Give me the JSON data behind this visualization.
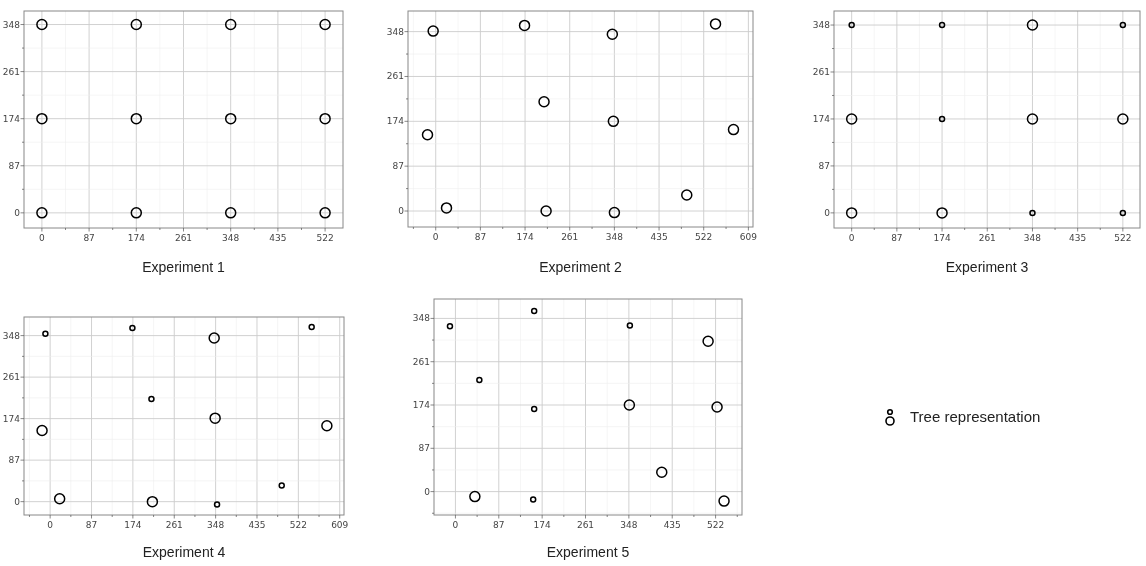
{
  "chart_data": [
    {
      "type": "bubble",
      "title": "Experiment 1",
      "grid": true,
      "xlim": [
        -33,
        555
      ],
      "ylim": [
        -28,
        373
      ],
      "xticks": [
        0,
        {
          "value": 43.5,
          "label": null
        },
        87,
        {
          "value": 130.5,
          "label": null
        },
        174,
        {
          "value": 217.5,
          "label": null
        },
        261,
        {
          "value": 304.5,
          "label": null
        },
        348,
        {
          "value": 391.5,
          "label": null
        },
        435,
        {
          "value": 478.5,
          "label": null
        },
        522
      ],
      "yticks": [
        0,
        {
          "value": 43.5,
          "label": null
        },
        87,
        {
          "value": 130.5,
          "label": null
        },
        174,
        {
          "value": 217.5,
          "label": null
        },
        261,
        {
          "value": 304.5,
          "label": null
        },
        348
      ],
      "series": [
        {
          "color": "#000000",
          "x": [
            0,
            174,
            348,
            522,
            0,
            174,
            348,
            522,
            0,
            174,
            348,
            522
          ],
          "values": [
            348,
            348,
            348,
            348,
            174,
            174,
            174,
            174,
            0,
            0,
            0,
            0
          ],
          "sizes": [
            1,
            1,
            1,
            1,
            1,
            1,
            1,
            1,
            1,
            1,
            1,
            1
          ]
        }
      ]
    },
    {
      "type": "bubble",
      "title": "Experiment 2",
      "grid": true,
      "xlim": [
        -54,
        618
      ],
      "ylim": [
        -31,
        388
      ],
      "xticks": [
        {
          "value": -43.5,
          "label": null
        },
        0,
        {
          "value": 43.5,
          "label": null
        },
        87,
        {
          "value": 130.5,
          "label": null
        },
        174,
        {
          "value": 217.5,
          "label": null
        },
        261,
        {
          "value": 304.5,
          "label": null
        },
        348,
        {
          "value": 391.5,
          "label": null
        },
        435,
        {
          "value": 478.5,
          "label": null
        },
        522,
        {
          "value": 565.5,
          "label": null
        },
        609
      ],
      "yticks": [
        0,
        {
          "value": 43.5,
          "label": null
        },
        87,
        {
          "value": 130.5,
          "label": null
        },
        174,
        {
          "value": 217.5,
          "label": null
        },
        261,
        {
          "value": 304.5,
          "label": null
        },
        348
      ],
      "series": [
        {
          "color": "#000000",
          "x": [
            -5,
            173,
            344,
            545,
            211,
            346,
            -16,
            580,
            21,
            215,
            348,
            489
          ],
          "values": [
            349,
            360,
            343,
            363,
            212,
            174,
            148,
            158,
            6,
            0,
            -3,
            31
          ],
          "sizes": [
            1,
            1,
            1,
            1,
            1,
            1,
            1,
            1,
            1,
            1,
            1,
            1
          ]
        }
      ]
    },
    {
      "type": "bubble",
      "title": "Experiment 3",
      "grid": true,
      "xlim": [
        -34,
        555
      ],
      "ylim": [
        -28,
        374
      ],
      "xticks": [
        0,
        {
          "value": 43.5,
          "label": null
        },
        87,
        {
          "value": 130.5,
          "label": null
        },
        174,
        {
          "value": 217.5,
          "label": null
        },
        261,
        {
          "value": 304.5,
          "label": null
        },
        348,
        {
          "value": 391.5,
          "label": null
        },
        435,
        {
          "value": 478.5,
          "label": null
        },
        522
      ],
      "yticks": [
        0,
        {
          "value": 43.5,
          "label": null
        },
        87,
        {
          "value": 130.5,
          "label": null
        },
        174,
        {
          "value": 217.5,
          "label": null
        },
        261,
        {
          "value": 304.5,
          "label": null
        },
        348
      ],
      "series": [
        {
          "color": "#000000",
          "x": [
            0,
            174,
            348,
            522,
            0,
            174,
            348,
            522,
            0,
            174,
            348,
            522
          ],
          "values": [
            348,
            348,
            348,
            348,
            174,
            174,
            174,
            174,
            0,
            0,
            0,
            0
          ],
          "sizes": [
            0.25,
            0.25,
            1,
            0.25,
            1,
            0.25,
            1,
            1,
            1,
            1,
            0.25,
            0.25
          ]
        }
      ]
    },
    {
      "type": "bubble",
      "title": "Experiment 4",
      "grid": true,
      "xlim": [
        -55,
        618
      ],
      "ylim": [
        -28,
        387
      ],
      "xticks": [
        {
          "value": -43.5,
          "label": null
        },
        0,
        {
          "value": 43.5,
          "label": null
        },
        87,
        {
          "value": 130.5,
          "label": null
        },
        174,
        {
          "value": 217.5,
          "label": null
        },
        261,
        {
          "value": 304.5,
          "label": null
        },
        348,
        {
          "value": 391.5,
          "label": null
        },
        435,
        {
          "value": 478.5,
          "label": null
        },
        522,
        {
          "value": 565.5,
          "label": null
        },
        609
      ],
      "yticks": [
        0,
        {
          "value": 43.5,
          "label": null
        },
        87,
        {
          "value": 130.5,
          "label": null
        },
        174,
        {
          "value": 217.5,
          "label": null
        },
        261,
        {
          "value": 304.5,
          "label": null
        },
        348
      ],
      "series": [
        {
          "color": "#000000",
          "x": [
            -10,
            173,
            345,
            550,
            213,
            347,
            -17,
            582,
            20,
            215,
            351,
            487
          ],
          "values": [
            352,
            364,
            343,
            366,
            215,
            175,
            149,
            159,
            6,
            0,
            -6,
            34
          ],
          "sizes": [
            0.25,
            0.25,
            1,
            0.25,
            0.25,
            1,
            1,
            1,
            1,
            1,
            0.25,
            0.25
          ]
        }
      ]
    },
    {
      "type": "bubble",
      "title": "Experiment 5",
      "grid": true,
      "xlim": [
        -43,
        575
      ],
      "ylim": [
        -47,
        387
      ],
      "xticks": [
        0,
        {
          "value": 43.5,
          "label": null
        },
        87,
        {
          "value": 130.5,
          "label": null
        },
        174,
        {
          "value": 217.5,
          "label": null
        },
        261,
        {
          "value": 304.5,
          "label": null
        },
        348,
        {
          "value": 391.5,
          "label": null
        },
        435,
        {
          "value": 478.5,
          "label": null
        },
        522,
        {
          "value": 565.5,
          "label": null
        }
      ],
      "yticks": [
        {
          "value": -43.5,
          "label": null
        },
        0,
        {
          "value": 43.5,
          "label": null
        },
        87,
        {
          "value": 130.5,
          "label": null
        },
        174,
        {
          "value": 217.5,
          "label": null
        },
        261,
        {
          "value": 304.5,
          "label": null
        },
        348
      ],
      "series": [
        {
          "color": "#000000",
          "x": [
            -11,
            158,
            350,
            507,
            48,
            158,
            349,
            525,
            414,
            39,
            156,
            539
          ],
          "values": [
            332,
            363,
            334,
            302,
            224,
            166,
            174,
            170,
            39,
            -10,
            -16,
            -19
          ],
          "sizes": [
            0.25,
            0.25,
            0.25,
            1,
            0.25,
            0.25,
            1,
            1,
            1,
            1,
            0.25,
            1
          ]
        }
      ]
    },
    {
      "type": "other",
      "annotations": [
        "Tree representation"
      ]
    }
  ]
}
